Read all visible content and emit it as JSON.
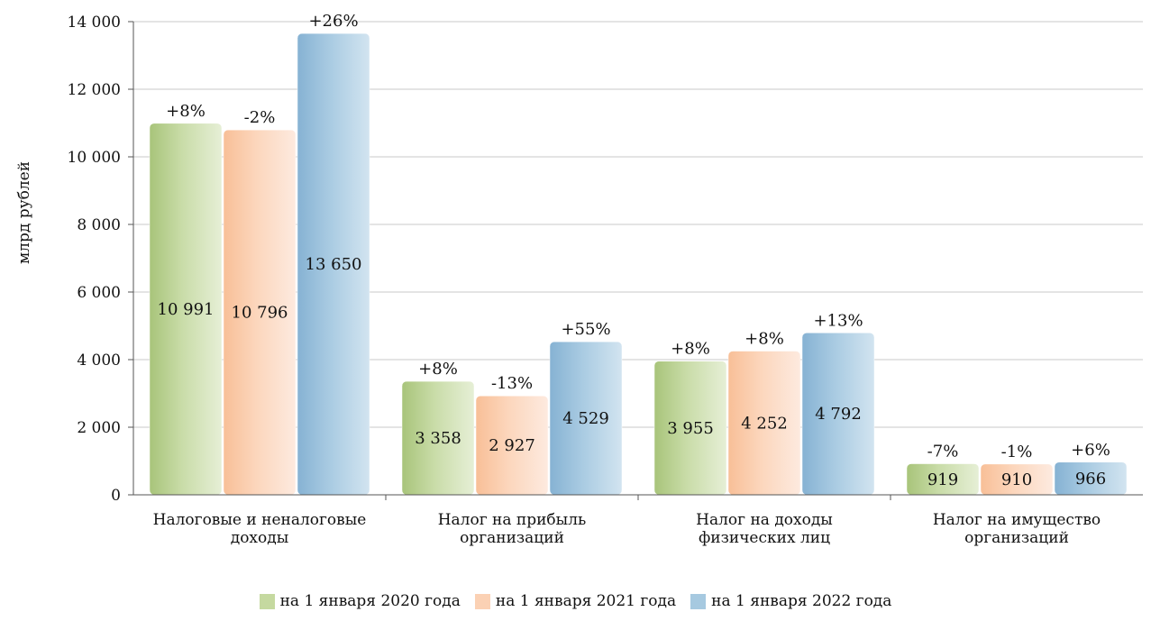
{
  "chart_data": {
    "type": "bar",
    "title": "",
    "xlabel": "",
    "ylabel": "млрд рублей",
    "ylim": [
      0,
      14000
    ],
    "yticks": [
      0,
      2000,
      4000,
      6000,
      8000,
      10000,
      12000,
      14000
    ],
    "ytick_labels": [
      "0",
      "2 000",
      "4 000",
      "6 000",
      "8 000",
      "10 000",
      "12 000",
      "14 000"
    ],
    "grid": true,
    "legend_position": "bottom",
    "categories": [
      [
        "Налоговые и неналоговые",
        "доходы"
      ],
      [
        "Налог на прибыль",
        "организаций"
      ],
      [
        "Налог на доходы",
        "физических лиц"
      ],
      [
        "Налог на имущество",
        "организаций"
      ]
    ],
    "series": [
      {
        "name": "на 1 января 2020 года",
        "color": "#c5d9a0",
        "values": [
          10991,
          3358,
          3955,
          919
        ],
        "value_labels": [
          "10 991",
          "3 358",
          "3 955",
          "919"
        ],
        "change_labels": [
          "+8%",
          "+8%",
          "+8%",
          "-7%"
        ]
      },
      {
        "name": "на 1 января 2021 года",
        "color": "#fbd1b4",
        "values": [
          10796,
          2927,
          4252,
          910
        ],
        "value_labels": [
          "10 796",
          "2 927",
          "4 252",
          "910"
        ],
        "change_labels": [
          "-2%",
          "-13%",
          "+8%",
          "-1%"
        ]
      },
      {
        "name": "на 1 января 2022 года",
        "color": "#a6c9e0",
        "values": [
          13650,
          4529,
          4792,
          966
        ],
        "value_labels": [
          "13 650",
          "4 529",
          "4 792",
          "966"
        ],
        "change_labels": [
          "+26%",
          "+55%",
          "+13%",
          "+6%"
        ]
      }
    ]
  }
}
